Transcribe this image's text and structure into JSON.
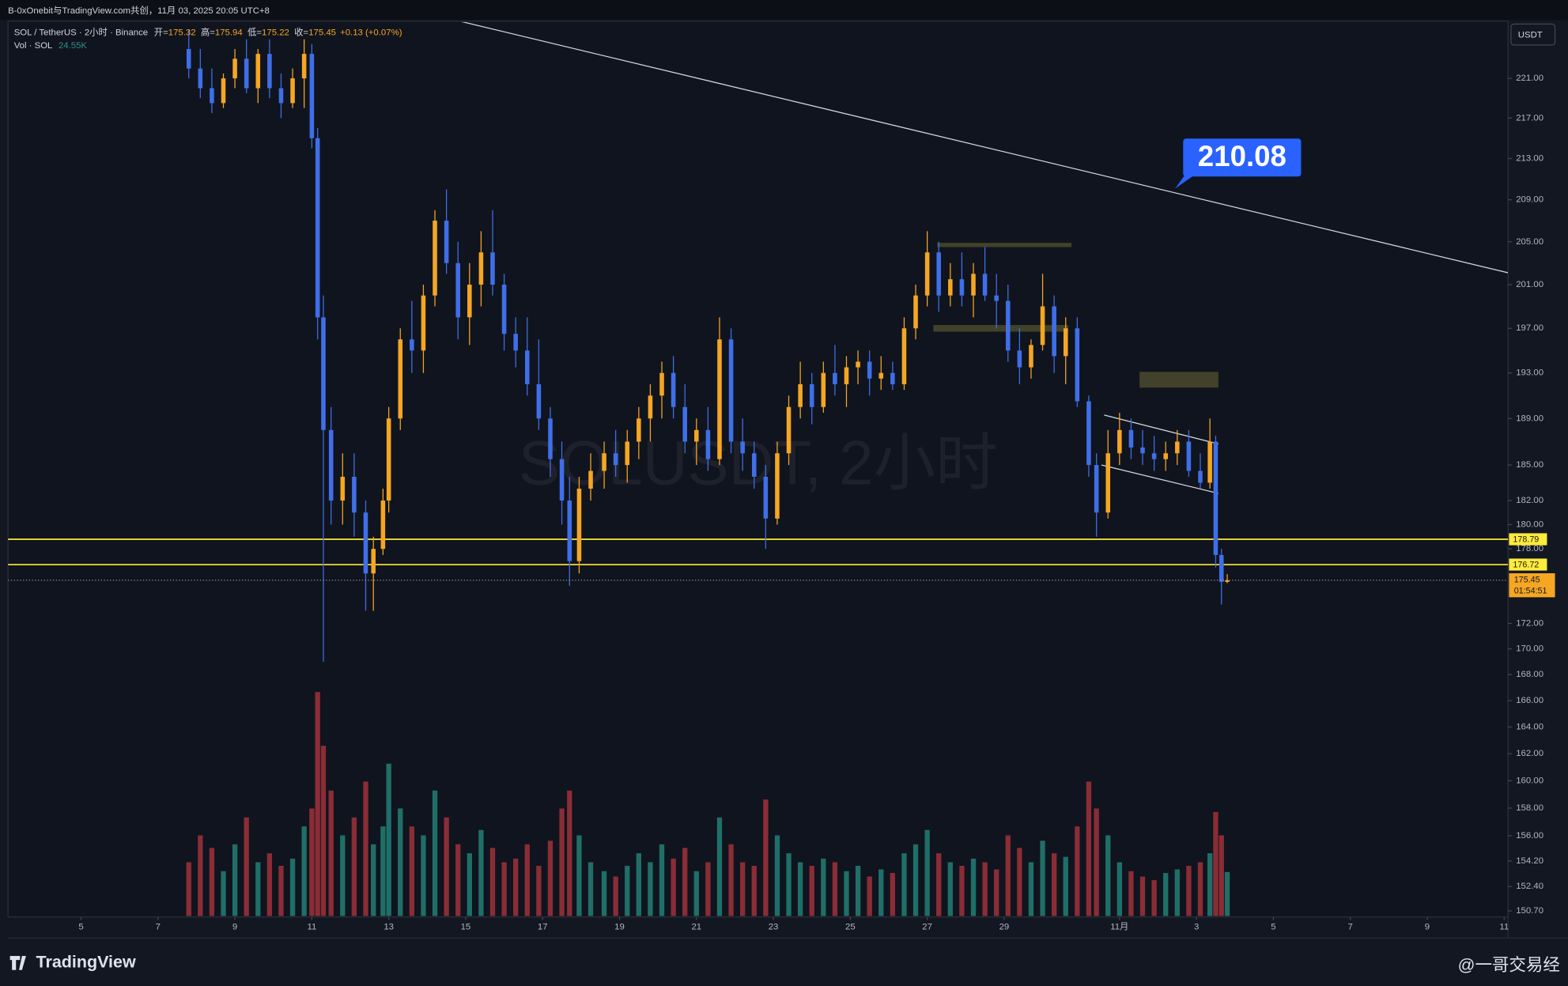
{
  "header": {
    "title": "B-0xOnebit与TradingView.com共创，11月 03, 2025 20:05 UTC+8"
  },
  "footer": {
    "brand": "TradingView",
    "credit": "@一哥交易经"
  },
  "chart_data": {
    "type": "candlestick",
    "symbol": "SOL / TetherUS · 2小时 · Binance",
    "ohlc_labels": [
      "开=",
      "高=",
      "低=",
      "收="
    ],
    "change": "+0.13 (+0.07%)",
    "volume_title": "Vol · SOL",
    "volume_label": "24.55K",
    "watermark": "SOLUSDT, 2小时",
    "price_unit": "USDT",
    "countdown": "01:54:51",
    "ylog": true,
    "grid": false,
    "up_color": "#f5a623",
    "down_color": "#3f6fe8",
    "volume_up_color": "#1f6f68",
    "volume_down_color": "#8a2d36",
    "xlim": [
      3.1,
      42.1
    ],
    "xticks": [
      5,
      7,
      9,
      11,
      13,
      15,
      17,
      19,
      21,
      23,
      25,
      27,
      29,
      {
        "value": 32,
        "label": "11月"
      },
      {
        "value": 34,
        "label": "3"
      },
      {
        "value": 36,
        "label": "5"
      },
      {
        "value": 38,
        "label": "7"
      },
      {
        "value": 40,
        "label": "9"
      },
      {
        "value": 42,
        "label": "11"
      }
    ],
    "ylim": [
      150.35,
      226.8
    ],
    "yticks": [
      {
        "value": 221,
        "label": "221.00"
      },
      {
        "value": 217,
        "label": "217.00"
      },
      {
        "value": 213,
        "label": "213.00"
      },
      {
        "value": 209,
        "label": "209.00"
      },
      {
        "value": 205,
        "label": "205.00"
      },
      {
        "value": 201,
        "label": "201.00"
      },
      {
        "value": 197,
        "label": "197.00"
      },
      {
        "value": 193,
        "label": "193.00"
      },
      {
        "value": 189,
        "label": "189.00"
      },
      {
        "value": 185,
        "label": "185.00"
      },
      {
        "value": 182,
        "label": "182.00"
      },
      {
        "value": 180,
        "label": "180.00"
      },
      {
        "value": 178,
        "label": "178.00"
      },
      {
        "value": 172,
        "label": "172.00"
      },
      {
        "value": 170,
        "label": "170.00"
      },
      {
        "value": 168,
        "label": "168.00"
      },
      {
        "value": 166,
        "label": "166.00"
      },
      {
        "value": 164,
        "label": "164.00"
      },
      {
        "value": 162,
        "label": "162.00"
      },
      {
        "value": 160,
        "label": "160.00"
      },
      {
        "value": 158,
        "label": "158.00"
      },
      {
        "value": 156,
        "label": "156.00"
      },
      {
        "value": 154.2,
        "label": "154.20"
      },
      {
        "value": 152.4,
        "label": "152.40"
      },
      {
        "value": 150.7,
        "label": "150.70"
      }
    ],
    "x": [
      7.8,
      8.1,
      8.4,
      8.7,
      9.0,
      9.3,
      9.6,
      9.9,
      10.2,
      10.5,
      10.8,
      11.0,
      11.15,
      11.3,
      11.5,
      11.8,
      12.1,
      12.4,
      12.6,
      12.85,
      13.0,
      13.3,
      13.6,
      13.9,
      14.2,
      14.5,
      14.8,
      15.1,
      15.4,
      15.7,
      16.0,
      16.3,
      16.6,
      16.9,
      17.2,
      17.5,
      17.7,
      17.95,
      18.25,
      18.6,
      18.9,
      19.2,
      19.5,
      19.8,
      20.1,
      20.4,
      20.7,
      21.0,
      21.3,
      21.6,
      21.9,
      22.2,
      22.5,
      22.8,
      23.1,
      23.4,
      23.7,
      24.0,
      24.3,
      24.6,
      24.9,
      25.2,
      25.5,
      25.8,
      26.1,
      26.4,
      26.7,
      27.0,
      27.3,
      27.6,
      27.9,
      28.2,
      28.5,
      28.8,
      29.1,
      29.4,
      29.7,
      30.0,
      30.3,
      30.6,
      30.9,
      31.2,
      31.4,
      31.7,
      32.0,
      32.3,
      32.6,
      32.9,
      33.2,
      33.5,
      33.8,
      34.1,
      34.35,
      34.5,
      34.65,
      34.8
    ],
    "ohlc": [
      [
        224,
        226,
        221,
        222
      ],
      [
        222,
        224,
        219,
        220
      ],
      [
        220,
        222,
        217.5,
        218.5
      ],
      [
        218.5,
        221.5,
        218,
        221
      ],
      [
        221,
        224,
        220,
        223
      ],
      [
        223,
        225,
        219.5,
        220
      ],
      [
        220,
        224,
        218.5,
        223.5
      ],
      [
        223.5,
        225,
        219,
        220
      ],
      [
        220,
        221.5,
        217,
        218.5
      ],
      [
        218.5,
        222,
        218,
        221
      ],
      [
        221,
        225,
        218,
        223.5
      ],
      [
        223.5,
        224.5,
        214,
        215
      ],
      [
        215,
        216,
        196,
        198
      ],
      [
        198,
        200,
        169,
        188
      ],
      [
        188,
        190,
        180,
        182
      ],
      [
        182,
        186,
        180,
        184
      ],
      [
        184,
        186,
        179,
        181
      ],
      [
        181,
        182,
        173,
        176
      ],
      [
        176,
        179,
        173,
        178
      ],
      [
        178,
        183,
        177.5,
        182
      ],
      [
        182,
        190,
        181,
        189
      ],
      [
        189,
        197,
        188,
        196
      ],
      [
        196,
        199.5,
        193,
        195
      ],
      [
        195,
        201,
        193,
        200
      ],
      [
        200,
        208,
        199,
        207
      ],
      [
        207,
        210,
        202,
        203
      ],
      [
        203,
        205,
        196,
        198
      ],
      [
        198,
        203,
        195.5,
        201
      ],
      [
        201,
        206,
        199,
        204
      ],
      [
        204,
        208,
        200,
        201
      ],
      [
        201,
        202,
        195,
        196.5
      ],
      [
        196.5,
        198,
        193.5,
        195
      ],
      [
        195,
        198,
        191,
        192
      ],
      [
        192,
        196,
        188,
        189
      ],
      [
        189,
        190,
        184,
        185.5
      ],
      [
        185.5,
        187,
        180,
        182
      ],
      [
        182,
        184,
        175,
        177
      ],
      [
        177,
        184,
        176,
        183
      ],
      [
        183,
        186,
        182,
        184.5
      ],
      [
        184.5,
        187,
        183,
        186
      ],
      [
        186,
        188,
        184,
        185
      ],
      [
        185,
        188,
        183.5,
        187
      ],
      [
        187,
        190,
        185.5,
        189
      ],
      [
        189,
        192,
        187,
        191
      ],
      [
        191,
        194,
        189,
        193
      ],
      [
        193,
        194.5,
        189,
        190
      ],
      [
        190,
        192,
        186,
        187
      ],
      [
        187,
        189,
        185,
        188
      ],
      [
        188,
        190,
        184.5,
        185.5
      ],
      [
        185.5,
        198,
        185,
        196
      ],
      [
        196,
        197,
        186,
        187
      ],
      [
        187,
        189,
        184.5,
        186
      ],
      [
        186,
        187,
        183,
        184
      ],
      [
        184,
        185,
        178,
        180.5
      ],
      [
        180.5,
        187,
        180,
        186
      ],
      [
        186,
        191,
        185,
        190
      ],
      [
        190,
        194,
        189,
        192
      ],
      [
        192,
        193,
        188.5,
        190
      ],
      [
        190,
        194,
        189.5,
        193
      ],
      [
        193,
        195.5,
        191,
        192
      ],
      [
        192,
        194.5,
        190,
        193.5
      ],
      [
        193.5,
        195,
        192,
        194
      ],
      [
        194,
        195,
        191,
        192.5
      ],
      [
        192.5,
        194.5,
        191.5,
        193
      ],
      [
        193,
        194,
        191.5,
        192
      ],
      [
        192,
        198,
        191.5,
        197
      ],
      [
        197,
        201,
        196,
        200
      ],
      [
        200,
        206,
        199,
        204
      ],
      [
        204,
        205,
        198.5,
        200
      ],
      [
        200,
        203,
        199,
        201.5
      ],
      [
        201.5,
        204,
        199,
        200
      ],
      [
        200,
        203,
        198,
        202
      ],
      [
        202,
        204.5,
        199.5,
        200
      ],
      [
        200,
        202,
        197,
        199.5
      ],
      [
        199.5,
        201,
        194,
        195
      ],
      [
        195,
        197,
        192,
        193.5
      ],
      [
        193.5,
        196,
        192.5,
        195.5
      ],
      [
        195.5,
        202,
        195,
        199
      ],
      [
        199,
        200,
        193,
        194.5
      ],
      [
        194.5,
        198,
        192,
        197
      ],
      [
        197,
        198,
        190,
        190.5
      ],
      [
        190.5,
        191,
        184,
        185
      ],
      [
        185,
        186,
        179,
        181
      ],
      [
        181,
        188,
        180.5,
        186
      ],
      [
        186,
        189.5,
        185,
        188
      ],
      [
        188,
        189,
        185.5,
        186.5
      ],
      [
        186.5,
        188,
        185,
        186
      ],
      [
        186,
        187.5,
        184.5,
        185.5
      ],
      [
        185.5,
        187,
        184.5,
        186
      ],
      [
        186,
        188,
        185,
        187
      ],
      [
        187,
        188,
        184,
        184.5
      ],
      [
        184.5,
        186,
        183,
        183.5
      ],
      [
        183.5,
        189,
        183,
        187
      ],
      [
        187,
        187.5,
        176.5,
        177.5
      ],
      [
        177.5,
        178,
        173.5,
        175.32
      ],
      [
        175.32,
        175.94,
        175.22,
        175.45
      ]
    ],
    "volume": [
      30,
      45,
      38,
      25,
      40,
      55,
      30,
      35,
      28,
      32,
      50,
      60,
      125,
      95,
      70,
      45,
      55,
      75,
      40,
      50,
      85,
      60,
      50,
      45,
      70,
      55,
      40,
      35,
      48,
      38,
      30,
      32,
      40,
      28,
      42,
      60,
      70,
      45,
      30,
      25,
      22,
      28,
      35,
      30,
      40,
      32,
      38,
      25,
      30,
      55,
      40,
      30,
      28,
      65,
      45,
      35,
      30,
      28,
      32,
      30,
      25,
      28,
      22,
      26,
      24,
      35,
      40,
      48,
      35,
      30,
      28,
      32,
      30,
      26,
      45,
      38,
      30,
      42,
      35,
      33,
      50,
      75,
      60,
      45,
      30,
      25,
      22,
      20,
      24,
      26,
      28,
      30,
      35,
      58,
      45,
      24.55
    ],
    "hlines": [
      {
        "value": 178.79,
        "color": "#ffeb3b"
      },
      {
        "value": 176.72,
        "color": "#ffeb3b"
      }
    ],
    "lines": [
      {
        "x": [
          14.73,
          42.1
        ],
        "y": [
          227.0,
          202.1
        ],
        "color": "#d1d4dc"
      },
      {
        "x": [
          31.6,
          34.57
        ],
        "y": [
          189.3,
          186.8
        ],
        "color": "#d1d4dc"
      },
      {
        "x": [
          31.53,
          34.57
        ],
        "y": [
          185.0,
          182.6
        ],
        "color": "#d1d4dc"
      }
    ],
    "zones": [
      {
        "x": [
          27.26,
          30.75
        ],
        "y": [
          204.5,
          204.9
        ],
        "color": "#4a4a2c"
      },
      {
        "x": [
          27.16,
          30.67
        ],
        "y": [
          196.7,
          197.3
        ],
        "color": "#4a4a2c"
      },
      {
        "x": [
          32.52,
          34.57
        ],
        "y": [
          191.7,
          193.1
        ],
        "color": "#4a4a2c"
      }
    ],
    "callout": {
      "value": 210.08,
      "color": "#2962ff"
    }
  }
}
